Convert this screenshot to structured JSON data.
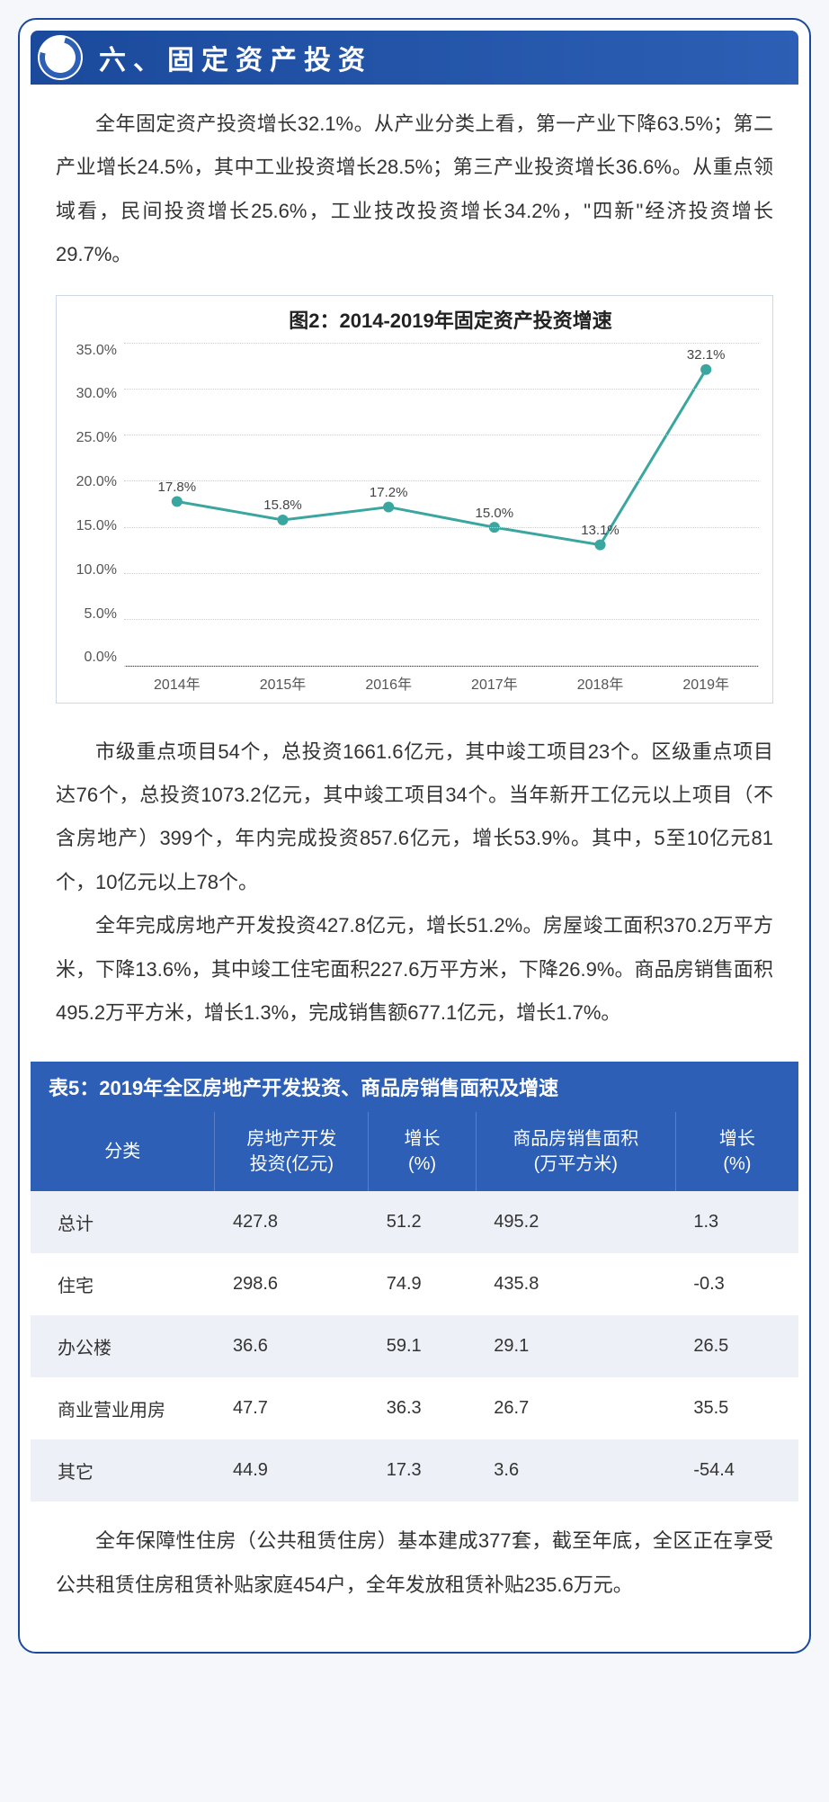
{
  "banner": {
    "title": "六、固定资产投资"
  },
  "paragraph1": "全年固定资产投资增长32.1%。从产业分类上看，第一产业下降63.5%；第二产业增长24.5%，其中工业投资增长28.5%；第三产业投资增长36.6%。从重点领域看，民间投资增长25.6%，工业技改投资增长34.2%，\"四新\"经济投资增长29.7%。",
  "chart": {
    "title": "图2：2014-2019年固定资产投资增速",
    "type": "line",
    "x_categories": [
      "2014年",
      "2015年",
      "2016年",
      "2017年",
      "2018年",
      "2019年"
    ],
    "values": [
      17.8,
      15.8,
      17.2,
      15.0,
      13.1,
      32.1
    ],
    "value_labels": [
      "17.8%",
      "15.8%",
      "17.2%",
      "15.0%",
      "13.1%",
      "32.1%"
    ],
    "y_ticks": [
      "35.0%",
      "30.0%",
      "25.0%",
      "20.0%",
      "15.0%",
      "10.0%",
      "5.0%",
      "0.0%"
    ],
    "ylim": [
      0,
      35
    ],
    "line_color": "#3aa6a0",
    "marker_color": "#3aa6a0",
    "grid_color": "#cfcfcf",
    "background_color": "#ffffff",
    "line_width": 3,
    "marker_size": 6,
    "y_step": 5
  },
  "paragraph2": "市级重点项目54个，总投资1661.6亿元，其中竣工项目23个。区级重点项目达76个，总投资1073.2亿元，其中竣工项目34个。当年新开工亿元以上项目（不含房地产）399个，年内完成投资857.6亿元，增长53.9%。其中，5至10亿元81个，10亿元以上78个。",
  "paragraph3": "全年完成房地产开发投资427.8亿元，增长51.2%。房屋竣工面积370.2万平方米，下降13.6%，其中竣工住宅面积227.6万平方米，下降26.9%。商品房销售面积495.2万平方米，增长1.3%，完成销售额677.1亿元，增长1.7%。",
  "table": {
    "title": "表5：2019年全区房地产开发投资、商品房销售面积及增速",
    "columns": [
      "分类",
      "房地产开发\n投资(亿元)",
      "增长\n(%)",
      "商品房销售面积\n(万平方米)",
      "增长\n(%)"
    ],
    "col_widths": [
      "24%",
      "20%",
      "14%",
      "26%",
      "16%"
    ],
    "rows": [
      [
        "总计",
        "427.8",
        "51.2",
        "495.2",
        "1.3"
      ],
      [
        "住宅",
        "298.6",
        "74.9",
        "435.8",
        "-0.3"
      ],
      [
        "办公楼",
        "36.6",
        "59.1",
        "29.1",
        "26.5"
      ],
      [
        "商业营业用房",
        "47.7",
        "36.3",
        "26.7",
        "35.5"
      ],
      [
        "其它",
        "44.9",
        "17.3",
        "3.6",
        "-54.4"
      ]
    ],
    "header_bg": "#2c5fb5",
    "header_color": "#ffffff",
    "row_odd_bg": "#eef0f7",
    "row_even_bg": "#ffffff"
  },
  "paragraph4": "全年保障性住房（公共租赁住房）基本建成377套，截至年底，全区正在享受公共租赁住房租赁补贴家庭454户，全年发放租赁补贴235.6万元。"
}
